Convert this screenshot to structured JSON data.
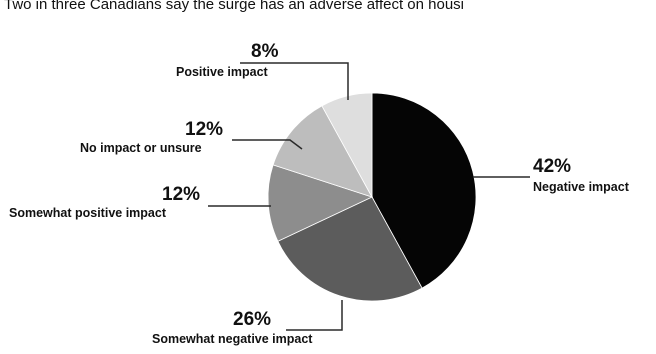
{
  "chart_data": {
    "type": "pie",
    "title": "Two in three Canadians say the surge has an adverse affect on housi",
    "slices": [
      {
        "label": "Negative impact",
        "value": 42,
        "value_label": "42%",
        "color": "#050505"
      },
      {
        "label": "Somewhat negative impact",
        "value": 26,
        "value_label": "26%",
        "color": "#5c5c5c"
      },
      {
        "label": "Somewhat positive impact",
        "value": 12,
        "value_label": "12%",
        "color": "#8d8d8d"
      },
      {
        "label": "No impact or unsure",
        "value": 12,
        "value_label": "12%",
        "color": "#bdbdbd"
      },
      {
        "label": "Positive impact",
        "value": 8,
        "value_label": "8%",
        "color": "#dedede"
      }
    ]
  }
}
